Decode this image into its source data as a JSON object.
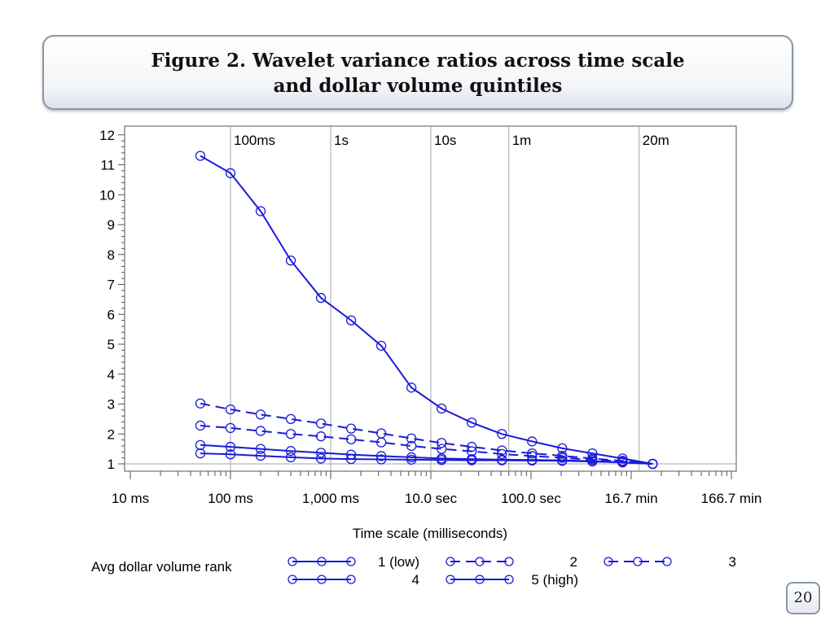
{
  "title": {
    "line1": "Figure 2. Wavelet variance ratios across time scale",
    "line2": "and dollar volume quintiles"
  },
  "page_number": "20",
  "colors": {
    "series": "#1a1adb",
    "gridline": "#a6a6a6",
    "axis": "#555555"
  },
  "chart_data": {
    "type": "line",
    "xlabel": "Time scale (milliseconds)",
    "ylabel": "",
    "x_scale": "log10",
    "xlim": [
      10,
      10000000
    ],
    "ylim": [
      1,
      12
    ],
    "x_ticks": [
      {
        "value": 10,
        "label": "10 ms"
      },
      {
        "value": 100,
        "label": "100 ms"
      },
      {
        "value": 1000,
        "label": "1,000 ms"
      },
      {
        "value": 10000,
        "label": "10.0 sec"
      },
      {
        "value": 100000,
        "label": "100.0 sec"
      },
      {
        "value": 1000000,
        "label": "16.7 min"
      },
      {
        "value": 10000000,
        "label": "166.7 min"
      }
    ],
    "y_ticks": [
      1,
      2,
      3,
      4,
      5,
      6,
      7,
      8,
      9,
      10,
      11,
      12
    ],
    "reference_lines": [
      {
        "x": 100,
        "label": "100ms"
      },
      {
        "x": 1000,
        "label": "1s"
      },
      {
        "x": 10000,
        "label": "10s"
      },
      {
        "x": 60000,
        "label": "1m"
      },
      {
        "x": 1200000,
        "label": "20m"
      }
    ],
    "x": [
      50,
      100,
      200,
      400,
      800,
      1600,
      3200,
      6400,
      12800,
      25600,
      51200,
      102400,
      204800,
      409600,
      819200,
      1638400
    ],
    "series": [
      {
        "name": "1 (low)",
        "dash": "solid",
        "values": [
          1.35,
          1.32,
          1.27,
          1.22,
          1.18,
          1.16,
          1.15,
          1.14,
          1.13,
          1.12,
          1.12,
          1.11,
          1.1,
          1.08,
          1.05,
          1.0
        ]
      },
      {
        "name": "2",
        "dash": "dashed",
        "values": [
          2.28,
          2.2,
          2.1,
          2.0,
          1.92,
          1.82,
          1.72,
          1.6,
          1.5,
          1.42,
          1.33,
          1.26,
          1.2,
          1.14,
          1.08,
          1.0
        ]
      },
      {
        "name": "3",
        "dash": "dashed",
        "values": [
          3.02,
          2.82,
          2.65,
          2.5,
          2.35,
          2.18,
          2.02,
          1.85,
          1.7,
          1.57,
          1.45,
          1.35,
          1.27,
          1.18,
          1.1,
          1.0
        ]
      },
      {
        "name": "4",
        "dash": "solid",
        "values": [
          1.63,
          1.57,
          1.5,
          1.43,
          1.37,
          1.31,
          1.26,
          1.22,
          1.18,
          1.16,
          1.14,
          1.13,
          1.12,
          1.09,
          1.05,
          1.0
        ]
      },
      {
        "name": "5 (high)",
        "dash": "solid",
        "values": [
          11.3,
          10.72,
          9.45,
          7.8,
          6.55,
          5.8,
          4.95,
          3.55,
          2.85,
          2.38,
          2.0,
          1.75,
          1.52,
          1.35,
          1.18,
          1.0
        ]
      }
    ],
    "legend": {
      "title": "Avg dollar volume rank",
      "placement": "bottom",
      "entries": [
        "1 (low)",
        "2",
        "3",
        "4",
        "5 (high)"
      ]
    },
    "grid": false
  }
}
